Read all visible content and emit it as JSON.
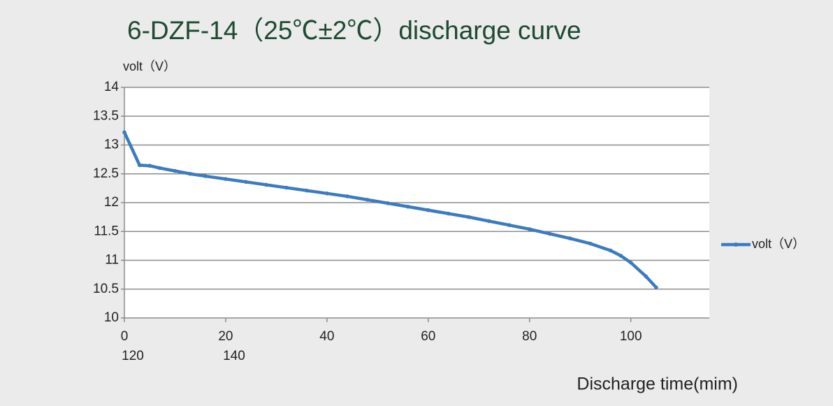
{
  "chart_data": {
    "type": "line",
    "title": "6-DZF-14（25℃±2℃）discharge curve",
    "y_axis_label": "volt（V）",
    "x_axis_label": "Discharge time(mim)",
    "x_extra_labels": [
      "120",
      "140"
    ],
    "x": [
      0,
      3,
      5,
      7,
      10,
      13,
      16,
      20,
      24,
      28,
      32,
      36,
      40,
      44,
      48,
      52,
      56,
      60,
      64,
      68,
      72,
      76,
      80,
      84,
      88,
      92,
      96,
      98,
      100,
      103,
      105
    ],
    "series": [
      {
        "name": "volt（V）",
        "color": "#3b7bbf",
        "values": [
          13.22,
          12.65,
          12.64,
          12.6,
          12.55,
          12.5,
          12.46,
          12.41,
          12.36,
          12.31,
          12.26,
          12.21,
          12.16,
          12.11,
          12.05,
          11.99,
          11.93,
          11.87,
          11.81,
          11.75,
          11.68,
          11.61,
          11.54,
          11.46,
          11.38,
          11.29,
          11.17,
          11.08,
          10.96,
          10.72,
          10.53
        ]
      }
    ],
    "xlim": [
      0,
      115.5
    ],
    "xticks": [
      0,
      20,
      40,
      60,
      80,
      100
    ],
    "ylim": [
      10,
      14
    ],
    "yticks": [
      10,
      10.5,
      11,
      11.5,
      12,
      12.5,
      13,
      13.5,
      14
    ],
    "grid": true,
    "legend": "right"
  }
}
